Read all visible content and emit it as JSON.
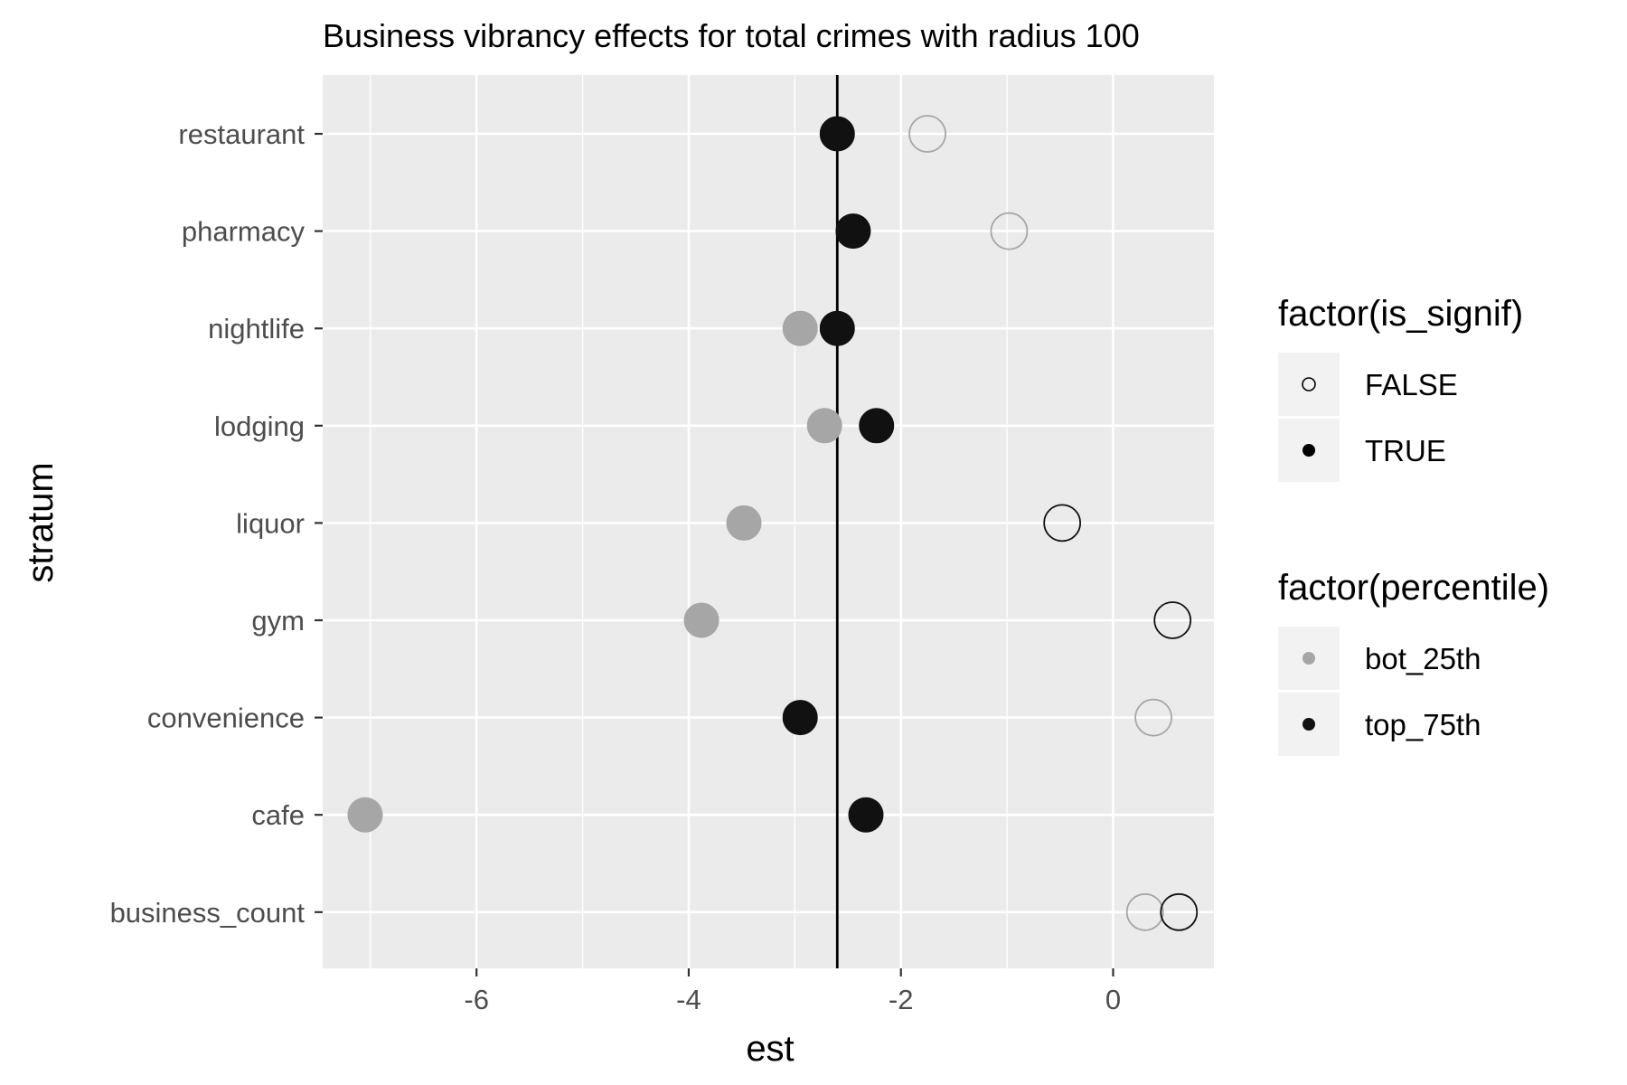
{
  "chart_data": {
    "type": "scatter",
    "title": "Business vibrancy effects for total crimes with radius 100",
    "xlabel": "est",
    "ylabel": "stratum",
    "xlim": [
      -7.45,
      0.95
    ],
    "x_ticks": [
      -6,
      -4,
      -2,
      0
    ],
    "x_tick_labels": [
      "-6",
      "-4",
      "-2",
      "0"
    ],
    "categories": [
      "restaurant",
      "pharmacy",
      "nightlife",
      "lodging",
      "liquor",
      "gym",
      "convenience",
      "cafe",
      "business_count"
    ],
    "reference_line_x": -2.6,
    "grid": true,
    "series": [
      {
        "name": "bot_25th",
        "color": "#a6a6a6",
        "points": [
          {
            "stratum": "restaurant",
            "est": -1.75,
            "is_signif": "FALSE"
          },
          {
            "stratum": "pharmacy",
            "est": -0.98,
            "is_signif": "FALSE"
          },
          {
            "stratum": "nightlife",
            "est": -2.95,
            "is_signif": "TRUE"
          },
          {
            "stratum": "lodging",
            "est": -2.72,
            "is_signif": "TRUE"
          },
          {
            "stratum": "liquor",
            "est": -3.48,
            "is_signif": "TRUE"
          },
          {
            "stratum": "gym",
            "est": -3.88,
            "is_signif": "TRUE"
          },
          {
            "stratum": "convenience",
            "est": 0.38,
            "is_signif": "FALSE"
          },
          {
            "stratum": "cafe",
            "est": -7.05,
            "is_signif": "TRUE"
          },
          {
            "stratum": "business_count",
            "est": 0.3,
            "is_signif": "FALSE"
          }
        ]
      },
      {
        "name": "top_75th",
        "color": "#111111",
        "points": [
          {
            "stratum": "restaurant",
            "est": -2.6,
            "is_signif": "TRUE"
          },
          {
            "stratum": "pharmacy",
            "est": -2.45,
            "is_signif": "TRUE"
          },
          {
            "stratum": "nightlife",
            "est": -2.6,
            "is_signif": "TRUE"
          },
          {
            "stratum": "lodging",
            "est": -2.23,
            "is_signif": "TRUE"
          },
          {
            "stratum": "liquor",
            "est": -0.48,
            "is_signif": "FALSE"
          },
          {
            "stratum": "gym",
            "est": 0.56,
            "is_signif": "FALSE"
          },
          {
            "stratum": "convenience",
            "est": -2.95,
            "is_signif": "TRUE"
          },
          {
            "stratum": "cafe",
            "est": -2.33,
            "is_signif": "TRUE"
          },
          {
            "stratum": "business_count",
            "est": 0.62,
            "is_signif": "FALSE"
          }
        ]
      }
    ],
    "legends": [
      {
        "title": "factor(is_signif)",
        "entries": [
          {
            "label": "FALSE",
            "style": "open"
          },
          {
            "label": "TRUE",
            "style": "filled"
          }
        ]
      },
      {
        "title": "factor(percentile)",
        "entries": [
          {
            "label": "bot_25th",
            "color": "#a6a6a6"
          },
          {
            "label": "top_75th",
            "color": "#111111"
          }
        ]
      }
    ],
    "legend_position": "right",
    "panel_color": "#ebebeb",
    "grid_color": "#ffffff"
  }
}
